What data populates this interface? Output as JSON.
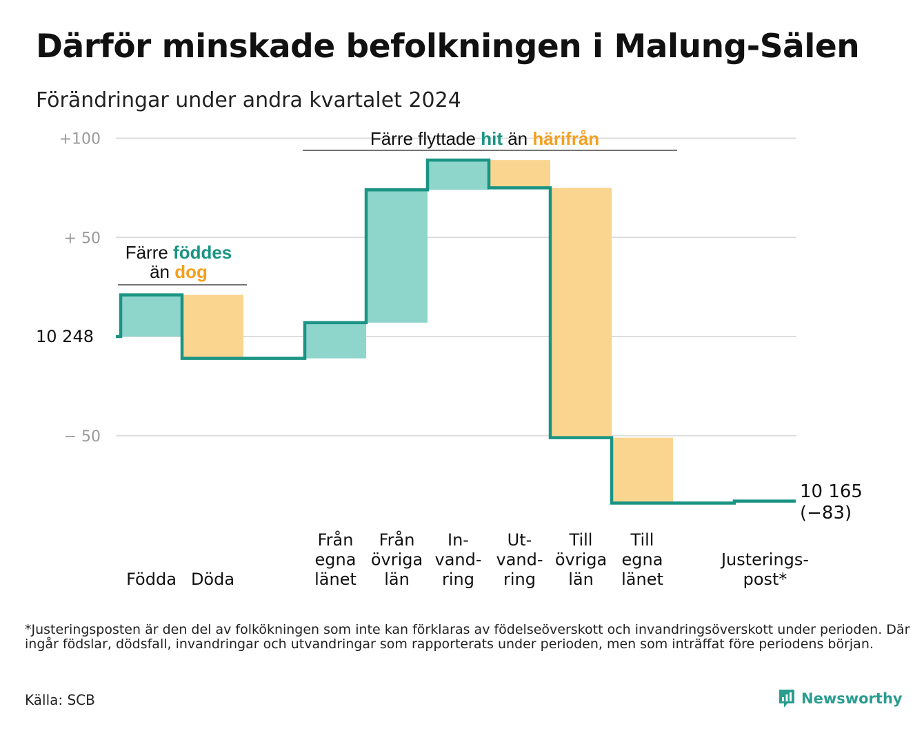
{
  "title": "Därför minskade befolkningen i Malung-Sälen",
  "subtitle": "Förändringar under andra kvartalet 2024",
  "chart_data": {
    "type": "waterfall",
    "title": "Därför minskade befolkningen i Malung-Sälen",
    "subtitle": "Förändringar under andra kvartalet 2024",
    "start_value": 10248,
    "start_label": "10  248",
    "end_value": 10165,
    "end_label": "10 165",
    "net_change_label": "(−83)",
    "y_range": [
      -95,
      100
    ],
    "y_ticks": [
      {
        "value": 100,
        "label": "+100"
      },
      {
        "value": 50,
        "label": "+  50"
      },
      {
        "value": -50,
        "label": "−  50"
      }
    ],
    "grid": true,
    "steps": [
      {
        "label": [
          "Födda"
        ],
        "value": 21,
        "kind": "in"
      },
      {
        "label": [
          "Döda"
        ],
        "value": -32,
        "kind": "out"
      },
      {
        "label": [
          ""
        ],
        "value": 0,
        "kind": "none"
      },
      {
        "label": [
          "Från",
          "egna",
          "länet"
        ],
        "value": 18,
        "kind": "in"
      },
      {
        "label": [
          "Från",
          "övriga",
          "län"
        ],
        "value": 67,
        "kind": "in"
      },
      {
        "label": [
          "In-",
          "vand-",
          "ring"
        ],
        "value": 15,
        "kind": "in"
      },
      {
        "label": [
          "Ut-",
          "vand-",
          "ring"
        ],
        "value": -14,
        "kind": "out"
      },
      {
        "label": [
          "Till",
          "övriga",
          "län"
        ],
        "value": -126,
        "kind": "out"
      },
      {
        "label": [
          "Till",
          "egna",
          "länet"
        ],
        "value": -33,
        "kind": "out"
      },
      {
        "label": [
          ""
        ],
        "value": 0,
        "kind": "none"
      },
      {
        "label": [
          "Justerings-",
          "post*"
        ],
        "value": 1,
        "kind": "adjust"
      }
    ],
    "annotations": [
      {
        "parts": [
          {
            "text": "Färre ",
            "style": "plain"
          },
          {
            "text": "föddes",
            "style": "in"
          }
        ],
        "line2": [
          {
            "text": "än ",
            "style": "plain"
          },
          {
            "text": "dog",
            "style": "out"
          }
        ]
      },
      {
        "parts": [
          {
            "text": "Färre flyttade ",
            "style": "plain"
          },
          {
            "text": "hit",
            "style": "in"
          },
          {
            "text": " än ",
            "style": "plain"
          },
          {
            "text": "härifrån",
            "style": "out"
          }
        ]
      }
    ]
  },
  "colors": {
    "line": "#1a9483",
    "in_fill": "#8ed5cc",
    "out_fill": "#fad590",
    "in_text": "#1a9483",
    "out_text": "#f4a020",
    "grid": "#dddddd",
    "tick_text": "#9a9a9a"
  },
  "footnote": "*Justeringsposten är den del av folkökningen som inte kan förklaras av födelseöverskott och invandringsöverskott under perioden. Där ingår födslar, dödsfall, invandringar och utvandringar som rapporterats under perioden, men som inträffat före periodens början.",
  "source": "Källa: SCB",
  "brand": {
    "name": "Newsworthy",
    "icon": "newsworthy-logo-icon"
  }
}
